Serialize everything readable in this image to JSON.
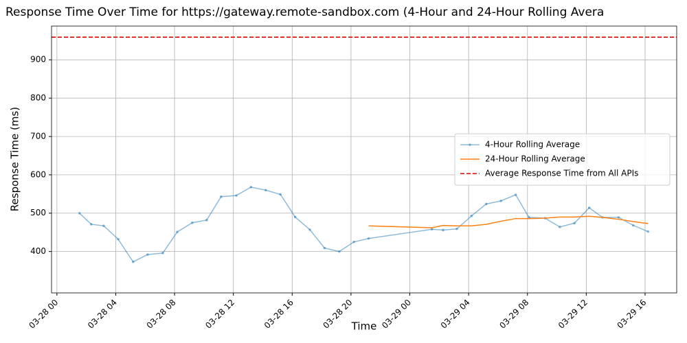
{
  "chart_data": {
    "type": "line",
    "title": "Response Time Over Time for https://gateway.remote-sandbox.com (4-Hour and 24-Hour Rolling Avera",
    "xlabel": "Time",
    "ylabel": "Response Time (ms)",
    "x": [
      "03-28 01:32",
      "03-28 02:20",
      "03-28 03:11",
      "03-28 04:10",
      "03-28 05:11",
      "03-28 06:10",
      "03-28 07:12",
      "03-28 08:11",
      "03-28 09:12",
      "03-28 10:11",
      "03-28 11:10",
      "03-28 12:12",
      "03-28 13:12",
      "03-28 14:12",
      "03-28 15:12",
      "03-28 16:12",
      "03-28 17:12",
      "03-28 18:12",
      "03-28 19:12",
      "03-28 20:12",
      "03-28 21:12",
      "03-29 01:30",
      "03-29 02:16",
      "03-29 03:12",
      "03-29 04:12",
      "03-29 05:12",
      "03-29 06:12",
      "03-29 07:12",
      "03-29 08:06",
      "03-29 09:12",
      "03-29 10:12",
      "03-29 11:12",
      "03-29 12:12",
      "03-29 13:06",
      "03-29 14:12",
      "03-29 15:12",
      "03-29 16:12"
    ],
    "series": [
      {
        "name": "4-Hour Rolling Average",
        "color": "#1f77b4",
        "opacity": 0.5,
        "marker": true,
        "values": [
          500,
          471,
          467,
          432,
          373,
          392,
          396,
          451,
          475,
          482,
          543,
          546,
          568,
          560,
          549,
          490,
          457,
          409,
          400,
          425,
          434,
          458,
          456,
          459,
          493,
          524,
          532,
          548,
          489,
          487,
          464,
          474,
          514,
          489,
          489,
          468,
          452
        ]
      },
      {
        "name": "24-Hour Rolling Average",
        "color": "#ff7f0e",
        "opacity": 1,
        "marker": false,
        "values": [
          null,
          null,
          null,
          null,
          null,
          null,
          null,
          null,
          null,
          null,
          null,
          null,
          null,
          null,
          null,
          null,
          null,
          null,
          null,
          null,
          467,
          462,
          468,
          467,
          467,
          471,
          479,
          486,
          486,
          487,
          490,
          490,
          492,
          489,
          484,
          478,
          473
        ]
      }
    ],
    "hlines": [
      {
        "name": "Average Response Time from All APIs",
        "value": 959,
        "color": "#e00000",
        "dashed": true
      }
    ],
    "xlim": [
      "03-27 23:38",
      "03-29 18:09"
    ],
    "xticks": [
      "03-28 00",
      "03-28 04",
      "03-28 08",
      "03-28 12",
      "03-28 16",
      "03-28 20",
      "03-29 00",
      "03-29 04",
      "03-29 08",
      "03-29 12",
      "03-29 16"
    ],
    "ylim": [
      292,
      988
    ],
    "yticks": [
      400,
      500,
      600,
      700,
      800,
      900
    ],
    "grid": true,
    "legend_loc": "center right"
  }
}
